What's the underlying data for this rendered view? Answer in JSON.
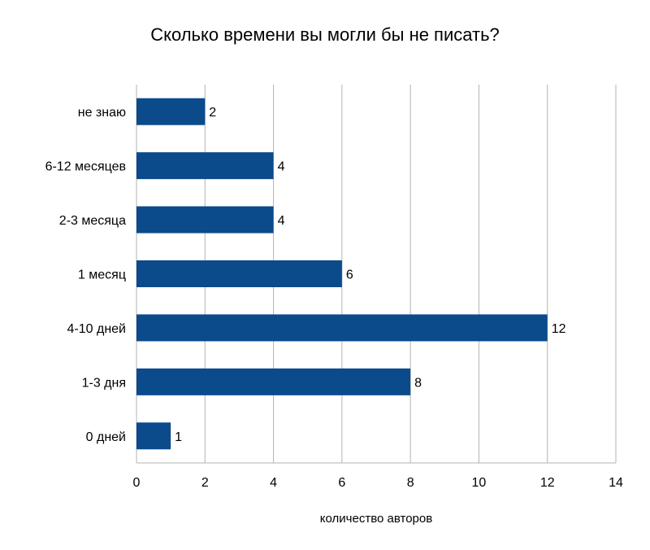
{
  "chart_data": {
    "type": "bar",
    "orientation": "horizontal",
    "title": "Сколько времени вы могли бы не писать?",
    "xlabel": "количество авторов",
    "ylabel": "",
    "categories": [
      "не знаю",
      "6-12 месяцев",
      "2-3 месяца",
      "1 месяц",
      "4-10 дней",
      "1-3 дня",
      "0 дней"
    ],
    "values": [
      2,
      4,
      4,
      6,
      12,
      8,
      1
    ],
    "xlim": [
      0,
      14
    ],
    "xticks": [
      0,
      2,
      4,
      6,
      8,
      10,
      12,
      14
    ],
    "grid": "vertical",
    "data_labels": true,
    "legend": "none",
    "colors": {
      "bar": "#0b4a8b",
      "grid": "#b3b3b3",
      "text": "#000000"
    }
  }
}
